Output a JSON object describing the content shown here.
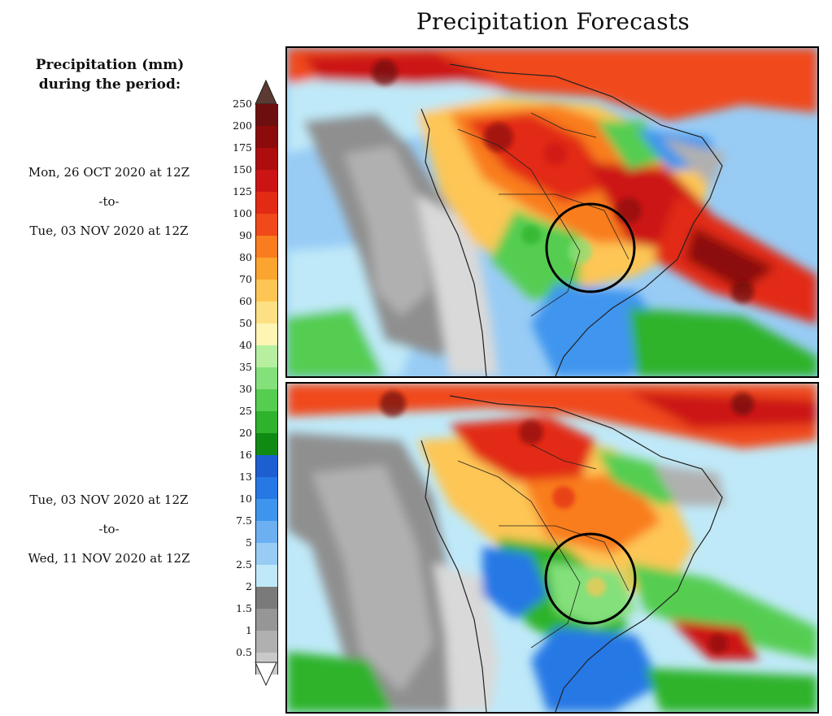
{
  "title": "Precipitation Forecasts",
  "legend": {
    "heading_line1": "Precipitation (mm)",
    "heading_line2": "during the period:",
    "labels": [
      "250",
      "200",
      "175",
      "150",
      "125",
      "100",
      "90",
      "80",
      "70",
      "60",
      "50",
      "40",
      "35",
      "30",
      "25",
      "20",
      "16",
      "13",
      "10",
      "7.5",
      "5",
      "2.5",
      "2",
      "1.5",
      "1",
      "0.5"
    ],
    "colors": [
      "#6e0f0f",
      "#8c0c0c",
      "#ad0d0d",
      "#cc1414",
      "#e22a14",
      "#f0491a",
      "#f97d1e",
      "#fca52e",
      "#fdc654",
      "#fde083",
      "#fef4b4",
      "#b6efa0",
      "#84e07a",
      "#55cd51",
      "#2fb32c",
      "#0f8a12",
      "#1d5fd0",
      "#2678e5",
      "#3f95ee",
      "#6cb0f2",
      "#98ccf5",
      "#bfe9f8",
      "#7a7a7a",
      "#969696",
      "#b0b0b0",
      "#c9c9c9"
    ]
  },
  "periods": [
    {
      "start": "Mon, 26 OCT 2020 at 12Z",
      "connector": "-to-",
      "end": "Tue, 03 NOV 2020 at 12Z"
    },
    {
      "start": "Tue, 03 NOV 2020 at 12Z",
      "connector": "-to-",
      "end": "Wed, 11 NOV 2020 at 12Z"
    }
  ],
  "maps": [
    {
      "region": "South America",
      "highlight": "circle"
    },
    {
      "region": "South America",
      "highlight": "circle"
    }
  ]
}
